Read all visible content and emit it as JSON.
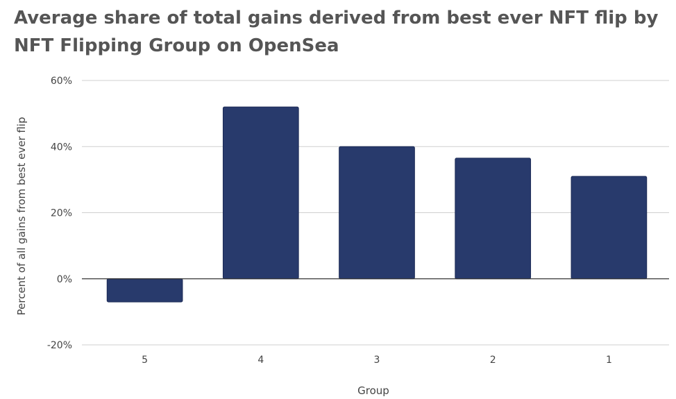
{
  "chart_data": {
    "type": "bar",
    "title": "Average share of total gains derived from best ever NFT flip by NFT Flipping Group on OpenSea",
    "xlabel": "Group",
    "ylabel": "Percent of all gains from best ever flip",
    "categories": [
      "5",
      "4",
      "3",
      "2",
      "1"
    ],
    "values": [
      -7,
      52,
      40,
      36.5,
      31
    ],
    "ylim": [
      -20,
      60
    ],
    "yticks": [
      -20,
      0,
      20,
      40,
      60
    ],
    "ytick_labels": [
      "-20%",
      "0%",
      "20%",
      "40%",
      "60%"
    ],
    "grid": true,
    "legend": "none",
    "bar_color": "#283a6c"
  }
}
